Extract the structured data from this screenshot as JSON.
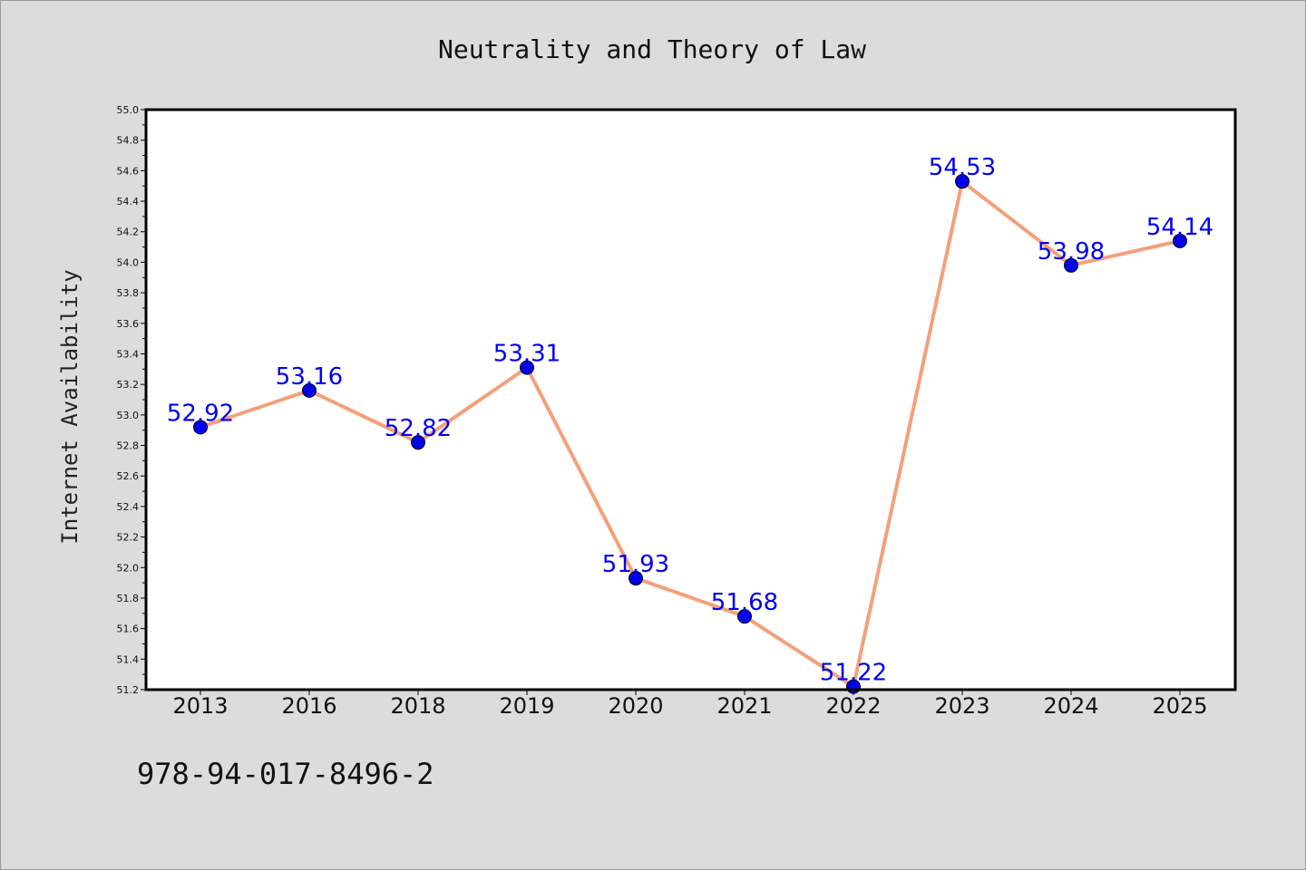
{
  "chart_data": {
    "type": "line",
    "title": "Neutrality and Theory of Law",
    "xlabel": "",
    "ylabel": "Internet Availability",
    "categories": [
      "2013",
      "2016",
      "2018",
      "2019",
      "2020",
      "2021",
      "2022",
      "2023",
      "2024",
      "2025"
    ],
    "series": [
      {
        "values": [
          52.92,
          53.16,
          52.82,
          53.31,
          51.93,
          51.68,
          51.22,
          54.53,
          53.98,
          54.14
        ]
      }
    ],
    "data_labels": [
      "52.92",
      "53.16",
      "52.82",
      "53.31",
      "51.93",
      "51.68",
      "51.22",
      "54.53",
      "53.98",
      "54.14"
    ],
    "ylim": [
      51.2,
      55.0
    ],
    "yticks": [
      "51.2",
      "51.4",
      "51.6",
      "51.8",
      "52.0",
      "52.2",
      "52.4",
      "52.6",
      "52.8",
      "53.0",
      "53.2",
      "53.4",
      "53.6",
      "53.8",
      "54.0",
      "54.2",
      "54.4",
      "54.6",
      "54.8",
      "55.0"
    ],
    "grid": false,
    "legend": "none",
    "colors": {
      "line": "#f4a07a",
      "marker": "#0000ee",
      "label": "#0000ee",
      "background": "#dcdcdc",
      "plot_background": "#ffffff"
    }
  },
  "footer": {
    "text": "978-94-017-8496-2"
  }
}
